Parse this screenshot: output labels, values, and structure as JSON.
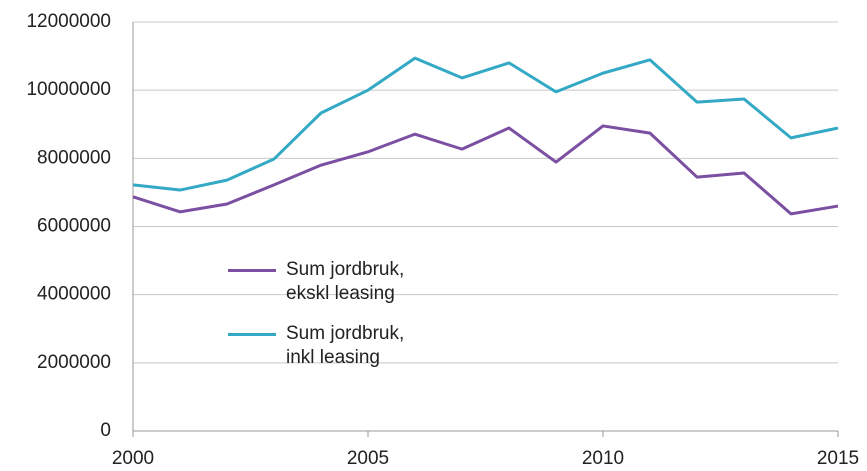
{
  "chart_data": {
    "type": "line",
    "x": [
      2000,
      2001,
      2002,
      2003,
      2004,
      2005,
      2006,
      2007,
      2008,
      2009,
      2010,
      2011,
      2012,
      2013,
      2014,
      2015
    ],
    "series": [
      {
        "name": "Sum jordbruk, ekskl leasing",
        "color": "#7b4fa1",
        "values": [
          6870000,
          6430000,
          6660000,
          7220000,
          7800000,
          8190000,
          8710000,
          8270000,
          8890000,
          7890000,
          8950000,
          8740000,
          7450000,
          7570000,
          6370000,
          6600000
        ]
      },
      {
        "name": "Sum jordbruk, inkl leasing",
        "color": "#33a9c6",
        "values": [
          7220000,
          7070000,
          7360000,
          7980000,
          9330000,
          10000000,
          10940000,
          10360000,
          10800000,
          9950000,
          10500000,
          10890000,
          9650000,
          9740000,
          8600000,
          8890000
        ]
      }
    ],
    "xlim": [
      2000,
      2015
    ],
    "xticks": [
      2000,
      2005,
      2010,
      2015
    ],
    "ylim": [
      0,
      12000000
    ],
    "yticks": [
      0,
      2000000,
      4000000,
      6000000,
      8000000,
      10000000,
      12000000
    ],
    "grid": true
  }
}
